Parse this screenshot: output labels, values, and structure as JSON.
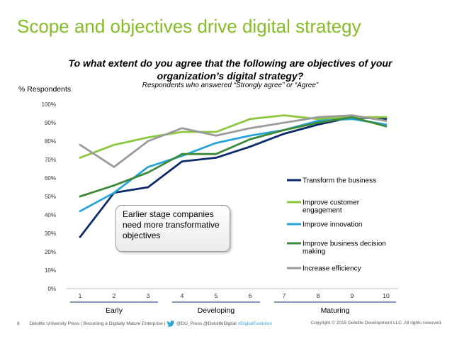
{
  "slide": {
    "title": "Scope and objectives drive digital strategy",
    "question": "To what extent do you agree that the following are objectives of your organization’s digital strategy?",
    "subquestion": "Respondents who answered “Strongly agree” or “Agree”",
    "callout": "Earlier stage companies need more transformative objectives"
  },
  "footer": {
    "page": "8",
    "text": "Deloitte University Press | Becoming a Digitally Mature Enterprise |",
    "handles": "@DU_Press @DeloitteDigital",
    "hashtag": "#DigitalEvolution",
    "copyright": "Copyright © 2015 Deloitte Development LLC. All rights reserved."
  },
  "chart_data": {
    "type": "line",
    "ylabel": "% Respondents",
    "x": [
      1,
      2,
      3,
      4,
      5,
      6,
      7,
      8,
      9,
      10
    ],
    "ylim": [
      0,
      100
    ],
    "yticks": [
      "0%",
      "10%",
      "20%",
      "30%",
      "40%",
      "50%",
      "60%",
      "70%",
      "80%",
      "90%",
      "100%"
    ],
    "stages": [
      {
        "label": "Early",
        "from": 1,
        "to": 3
      },
      {
        "label": "Developing",
        "from": 4,
        "to": 6
      },
      {
        "label": "Maturing",
        "from": 7,
        "to": 10
      }
    ],
    "grid": false,
    "legend_position": "right",
    "series": [
      {
        "name": "Transform the business",
        "color": "#0c2a6b",
        "values": [
          28,
          52,
          55,
          69,
          71,
          77,
          84,
          89,
          93,
          92
        ]
      },
      {
        "name": "Improve customer engagement",
        "color": "#8dc63f",
        "values": [
          71,
          78,
          82,
          85,
          85,
          92,
          94,
          92,
          93,
          93
        ]
      },
      {
        "name": "Improve innovation",
        "color": "#29a3d9",
        "values": [
          42,
          52,
          66,
          72,
          79,
          83,
          86,
          91,
          92,
          89
        ]
      },
      {
        "name": "Improve business decision making",
        "color": "#3c8a37",
        "values": [
          50,
          56,
          63,
          73,
          73,
          81,
          86,
          90,
          93,
          88
        ]
      },
      {
        "name": "Increase efficiency",
        "color": "#9b9b9b",
        "values": [
          78,
          66,
          80,
          87,
          83,
          87,
          90,
          93,
          94,
          91
        ]
      }
    ]
  }
}
